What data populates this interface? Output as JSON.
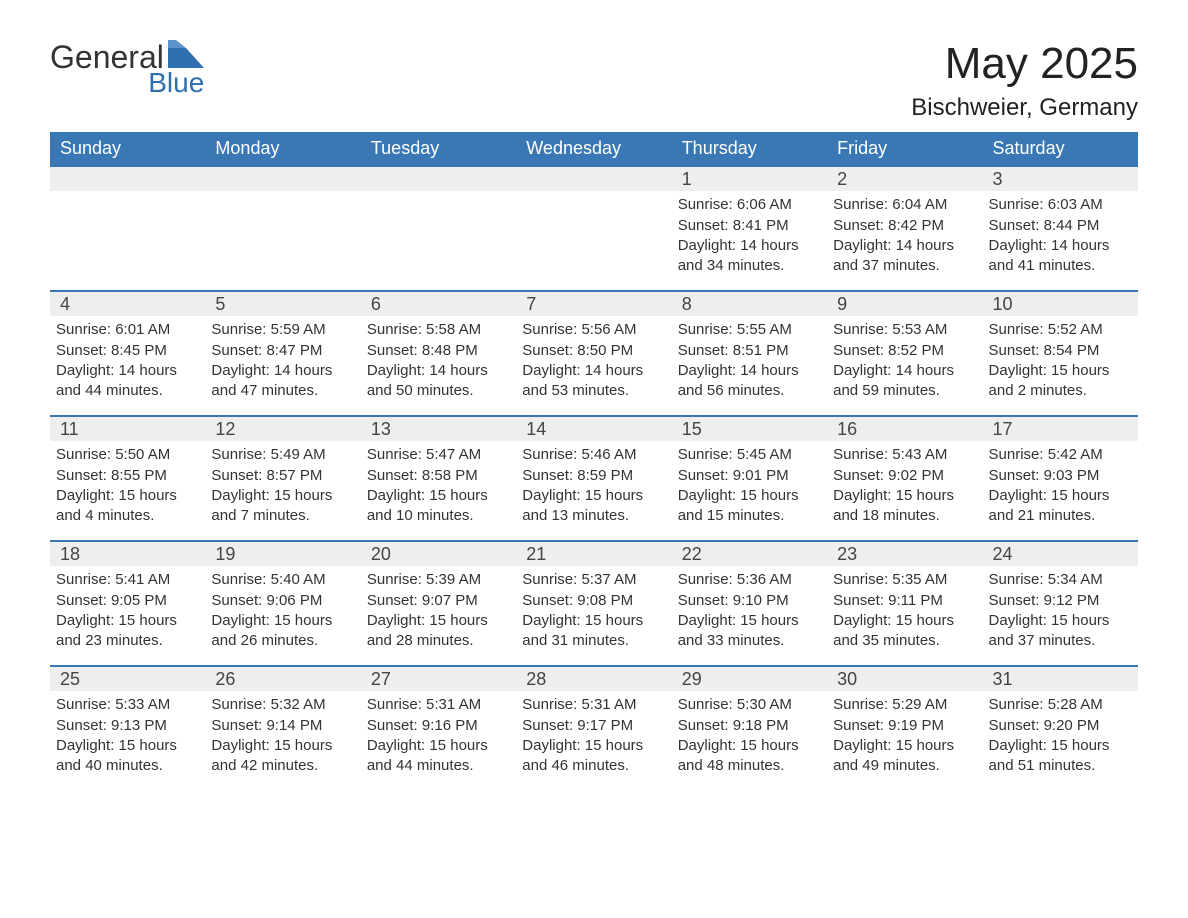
{
  "brand": {
    "word1": "General",
    "word2": "Blue",
    "text_color": "#333333",
    "accent_color": "#2f6fae"
  },
  "header": {
    "title": "May 2025",
    "location": "Bischweier, Germany"
  },
  "colors": {
    "header_bg": "#3a78b5",
    "header_text": "#ffffff",
    "row_border": "#3a78b5",
    "daynum_bg": "#eeeeee",
    "body_text": "#333333",
    "background": "#ffffff"
  },
  "dayHeaders": [
    "Sunday",
    "Monday",
    "Tuesday",
    "Wednesday",
    "Thursday",
    "Friday",
    "Saturday"
  ],
  "weeks": [
    [
      null,
      null,
      null,
      null,
      {
        "n": "1",
        "sunrise": "Sunrise: 6:06 AM",
        "sunset": "Sunset: 8:41 PM",
        "day1": "Daylight: 14 hours",
        "day2": "and 34 minutes."
      },
      {
        "n": "2",
        "sunrise": "Sunrise: 6:04 AM",
        "sunset": "Sunset: 8:42 PM",
        "day1": "Daylight: 14 hours",
        "day2": "and 37 minutes."
      },
      {
        "n": "3",
        "sunrise": "Sunrise: 6:03 AM",
        "sunset": "Sunset: 8:44 PM",
        "day1": "Daylight: 14 hours",
        "day2": "and 41 minutes."
      }
    ],
    [
      {
        "n": "4",
        "sunrise": "Sunrise: 6:01 AM",
        "sunset": "Sunset: 8:45 PM",
        "day1": "Daylight: 14 hours",
        "day2": "and 44 minutes."
      },
      {
        "n": "5",
        "sunrise": "Sunrise: 5:59 AM",
        "sunset": "Sunset: 8:47 PM",
        "day1": "Daylight: 14 hours",
        "day2": "and 47 minutes."
      },
      {
        "n": "6",
        "sunrise": "Sunrise: 5:58 AM",
        "sunset": "Sunset: 8:48 PM",
        "day1": "Daylight: 14 hours",
        "day2": "and 50 minutes."
      },
      {
        "n": "7",
        "sunrise": "Sunrise: 5:56 AM",
        "sunset": "Sunset: 8:50 PM",
        "day1": "Daylight: 14 hours",
        "day2": "and 53 minutes."
      },
      {
        "n": "8",
        "sunrise": "Sunrise: 5:55 AM",
        "sunset": "Sunset: 8:51 PM",
        "day1": "Daylight: 14 hours",
        "day2": "and 56 minutes."
      },
      {
        "n": "9",
        "sunrise": "Sunrise: 5:53 AM",
        "sunset": "Sunset: 8:52 PM",
        "day1": "Daylight: 14 hours",
        "day2": "and 59 minutes."
      },
      {
        "n": "10",
        "sunrise": "Sunrise: 5:52 AM",
        "sunset": "Sunset: 8:54 PM",
        "day1": "Daylight: 15 hours",
        "day2": "and 2 minutes."
      }
    ],
    [
      {
        "n": "11",
        "sunrise": "Sunrise: 5:50 AM",
        "sunset": "Sunset: 8:55 PM",
        "day1": "Daylight: 15 hours",
        "day2": "and 4 minutes."
      },
      {
        "n": "12",
        "sunrise": "Sunrise: 5:49 AM",
        "sunset": "Sunset: 8:57 PM",
        "day1": "Daylight: 15 hours",
        "day2": "and 7 minutes."
      },
      {
        "n": "13",
        "sunrise": "Sunrise: 5:47 AM",
        "sunset": "Sunset: 8:58 PM",
        "day1": "Daylight: 15 hours",
        "day2": "and 10 minutes."
      },
      {
        "n": "14",
        "sunrise": "Sunrise: 5:46 AM",
        "sunset": "Sunset: 8:59 PM",
        "day1": "Daylight: 15 hours",
        "day2": "and 13 minutes."
      },
      {
        "n": "15",
        "sunrise": "Sunrise: 5:45 AM",
        "sunset": "Sunset: 9:01 PM",
        "day1": "Daylight: 15 hours",
        "day2": "and 15 minutes."
      },
      {
        "n": "16",
        "sunrise": "Sunrise: 5:43 AM",
        "sunset": "Sunset: 9:02 PM",
        "day1": "Daylight: 15 hours",
        "day2": "and 18 minutes."
      },
      {
        "n": "17",
        "sunrise": "Sunrise: 5:42 AM",
        "sunset": "Sunset: 9:03 PM",
        "day1": "Daylight: 15 hours",
        "day2": "and 21 minutes."
      }
    ],
    [
      {
        "n": "18",
        "sunrise": "Sunrise: 5:41 AM",
        "sunset": "Sunset: 9:05 PM",
        "day1": "Daylight: 15 hours",
        "day2": "and 23 minutes."
      },
      {
        "n": "19",
        "sunrise": "Sunrise: 5:40 AM",
        "sunset": "Sunset: 9:06 PM",
        "day1": "Daylight: 15 hours",
        "day2": "and 26 minutes."
      },
      {
        "n": "20",
        "sunrise": "Sunrise: 5:39 AM",
        "sunset": "Sunset: 9:07 PM",
        "day1": "Daylight: 15 hours",
        "day2": "and 28 minutes."
      },
      {
        "n": "21",
        "sunrise": "Sunrise: 5:37 AM",
        "sunset": "Sunset: 9:08 PM",
        "day1": "Daylight: 15 hours",
        "day2": "and 31 minutes."
      },
      {
        "n": "22",
        "sunrise": "Sunrise: 5:36 AM",
        "sunset": "Sunset: 9:10 PM",
        "day1": "Daylight: 15 hours",
        "day2": "and 33 minutes."
      },
      {
        "n": "23",
        "sunrise": "Sunrise: 5:35 AM",
        "sunset": "Sunset: 9:11 PM",
        "day1": "Daylight: 15 hours",
        "day2": "and 35 minutes."
      },
      {
        "n": "24",
        "sunrise": "Sunrise: 5:34 AM",
        "sunset": "Sunset: 9:12 PM",
        "day1": "Daylight: 15 hours",
        "day2": "and 37 minutes."
      }
    ],
    [
      {
        "n": "25",
        "sunrise": "Sunrise: 5:33 AM",
        "sunset": "Sunset: 9:13 PM",
        "day1": "Daylight: 15 hours",
        "day2": "and 40 minutes."
      },
      {
        "n": "26",
        "sunrise": "Sunrise: 5:32 AM",
        "sunset": "Sunset: 9:14 PM",
        "day1": "Daylight: 15 hours",
        "day2": "and 42 minutes."
      },
      {
        "n": "27",
        "sunrise": "Sunrise: 5:31 AM",
        "sunset": "Sunset: 9:16 PM",
        "day1": "Daylight: 15 hours",
        "day2": "and 44 minutes."
      },
      {
        "n": "28",
        "sunrise": "Sunrise: 5:31 AM",
        "sunset": "Sunset: 9:17 PM",
        "day1": "Daylight: 15 hours",
        "day2": "and 46 minutes."
      },
      {
        "n": "29",
        "sunrise": "Sunrise: 5:30 AM",
        "sunset": "Sunset: 9:18 PM",
        "day1": "Daylight: 15 hours",
        "day2": "and 48 minutes."
      },
      {
        "n": "30",
        "sunrise": "Sunrise: 5:29 AM",
        "sunset": "Sunset: 9:19 PM",
        "day1": "Daylight: 15 hours",
        "day2": "and 49 minutes."
      },
      {
        "n": "31",
        "sunrise": "Sunrise: 5:28 AM",
        "sunset": "Sunset: 9:20 PM",
        "day1": "Daylight: 15 hours",
        "day2": "and 51 minutes."
      }
    ]
  ]
}
